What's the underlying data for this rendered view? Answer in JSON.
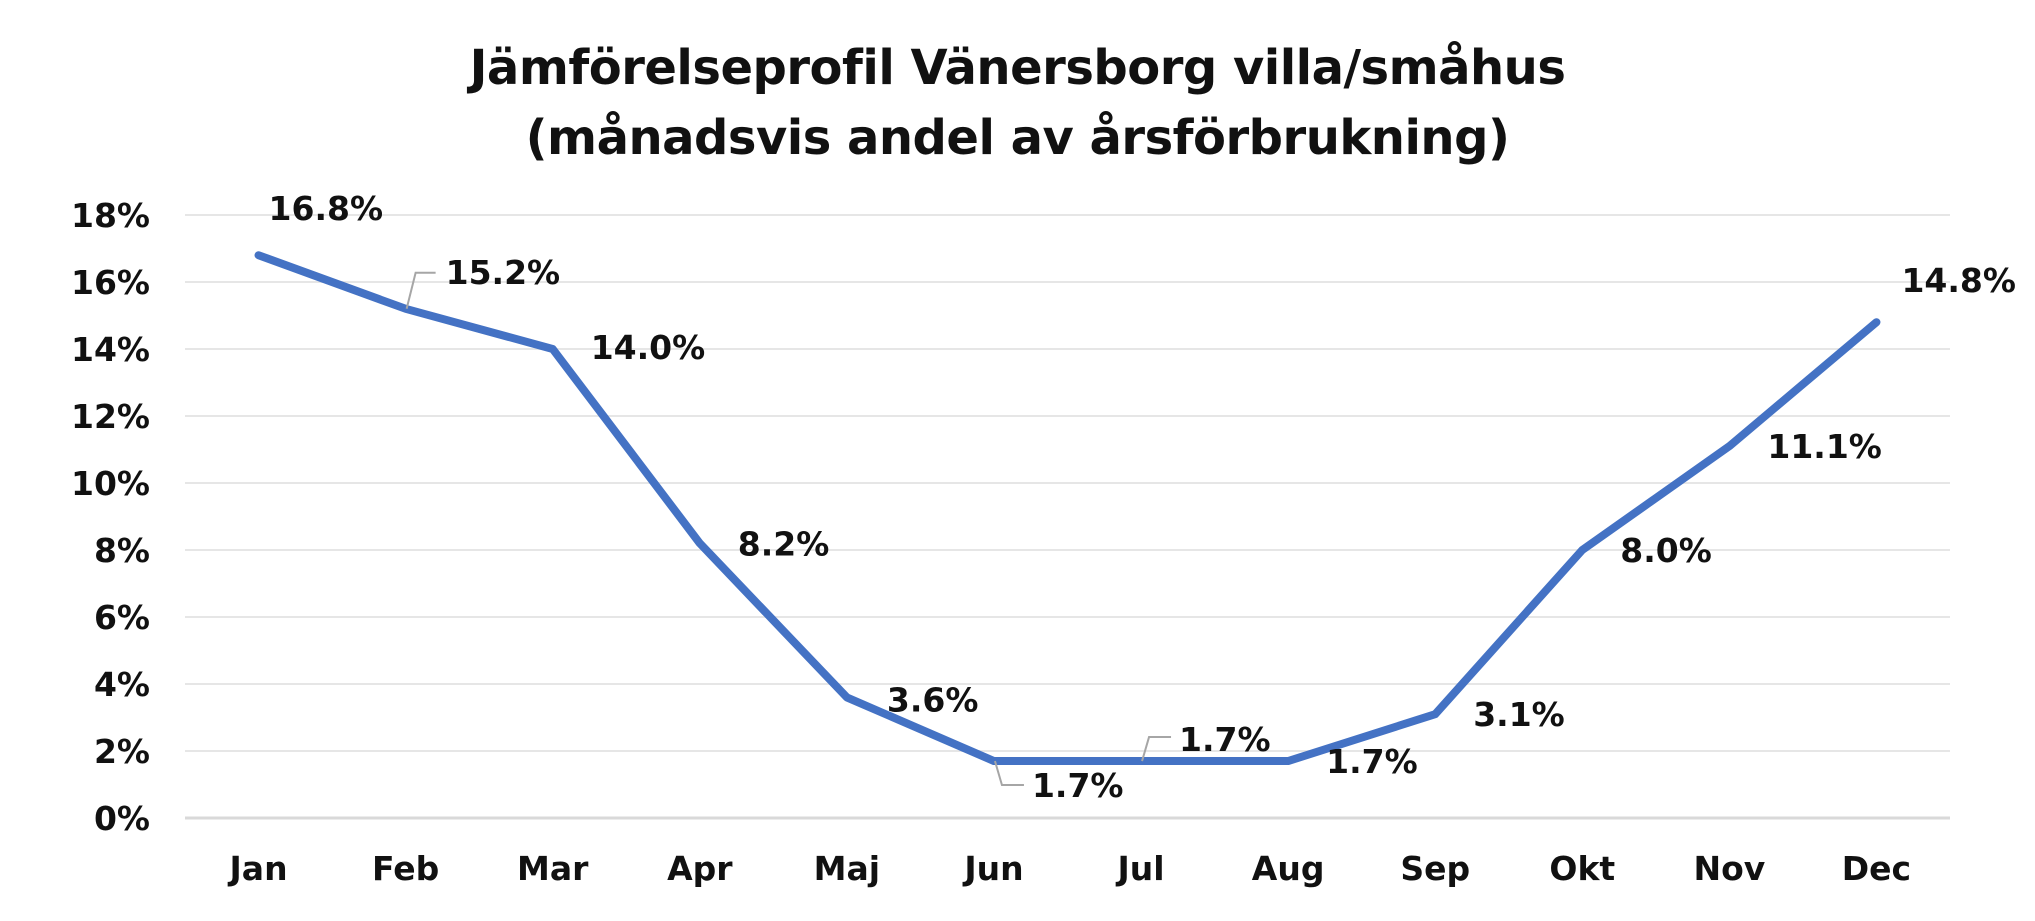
{
  "title_lines": [
    "Jämförelseprofil Vänersborg villa/småhus",
    "(månadsvis andel av årsförbrukning)"
  ],
  "chart_data": {
    "type": "line",
    "title": "Jämförelseprofil Vänersborg villa/småhus (månadsvis andel av årsförbrukning)",
    "categories": [
      "Jan",
      "Feb",
      "Mar",
      "Apr",
      "Maj",
      "Jun",
      "Jul",
      "Aug",
      "Sep",
      "Okt",
      "Nov",
      "Dec"
    ],
    "series": [
      {
        "values": [
          16.8,
          15.2,
          14.0,
          8.2,
          3.6,
          1.7,
          1.7,
          1.7,
          3.1,
          8.0,
          11.1,
          14.8
        ],
        "labels": [
          "16.8%",
          "15.2%",
          "14.0%",
          "8.2%",
          "3.6%",
          "1.7%",
          "1.7%",
          "1.7%",
          "3.1%",
          "8.0%",
          "11.1%",
          "14.8%"
        ],
        "color": "#4472C4"
      }
    ],
    "yticks": [
      0,
      2,
      4,
      6,
      8,
      10,
      12,
      14,
      16,
      18
    ],
    "ytick_labels": [
      "0%",
      "2%",
      "4%",
      "6%",
      "8%",
      "10%",
      "12%",
      "14%",
      "16%",
      "18%"
    ],
    "ylim": [
      0,
      18
    ],
    "xlabel": "",
    "ylabel": "",
    "grid": true,
    "gridline_color": "#E6E6E6",
    "axis_color": "#D9D9D9",
    "leader_line_color": "#A6A6A6",
    "text_color": "#111111"
  }
}
